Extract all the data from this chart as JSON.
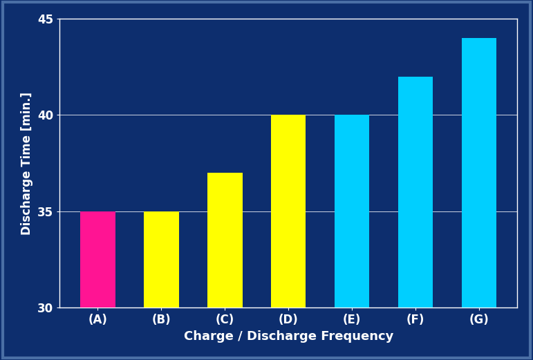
{
  "categories": [
    "(A)",
    "(B)",
    "(C)",
    "(D)",
    "(E)",
    "(F)",
    "(G)"
  ],
  "values": [
    35,
    35,
    37,
    40,
    40,
    42,
    44
  ],
  "bar_colors": [
    "#FF1493",
    "#FFFF00",
    "#FFFF00",
    "#FFFF00",
    "#00CFFF",
    "#00CFFF",
    "#00CFFF"
  ],
  "xlabel": "Charge / Discharge Frequency",
  "ylabel": "Discharge Time [min.]",
  "ylim": [
    30,
    45
  ],
  "yticks": [
    30,
    35,
    40,
    45
  ],
  "background_color": "#0D2E6E",
  "plot_bg_color": "#0D2E6E",
  "text_color": "#FFFFFF",
  "xtick_color": "#FFFFFF",
  "grid_color": "#FFFFFF",
  "xlabel_fontsize": 13,
  "ylabel_fontsize": 12,
  "tick_fontsize": 12,
  "xtick_fontsize": 12,
  "bar_width": 0.55,
  "spine_color": "#FFFFFF",
  "outer_border_color": "#4A6FA5"
}
